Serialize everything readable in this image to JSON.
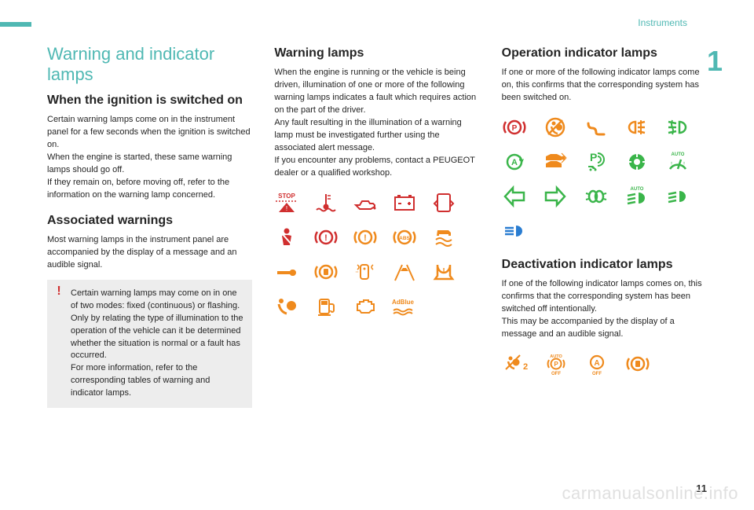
{
  "meta": {
    "section_label": "Instruments",
    "chapter_number": "1",
    "page_number": "11",
    "watermark": "carmanualsonline.info"
  },
  "colors": {
    "accent": "#4fb8b3",
    "red": "#d02f2f",
    "amber": "#ef8a1d",
    "green": "#3ab54a",
    "blue": "#2a7dd1",
    "text": "#252525",
    "callout_bg": "#ededed"
  },
  "col1": {
    "title": "Warning and indicator lamps",
    "h_ignition": "When the ignition is switched on",
    "p_ignition": "Certain warning lamps come on in the instrument panel for a few seconds when the ignition is switched on.\nWhen the engine is started, these same warning lamps should go off.\nIf they remain on, before moving off, refer to the information on the warning lamp concerned.",
    "h_assoc": "Associated warnings",
    "p_assoc": "Most warning lamps in the instrument panel are accompanied by the display of a message and an audible signal.",
    "callout": "Certain warning lamps may come on in one of two modes: fixed (continuous) or flashing.\nOnly by relating the type of illumination to the operation of the vehicle can it be determined whether the situation is normal or a fault has occurred.\nFor more information, refer to the corresponding tables of warning and indicator lamps."
  },
  "col2": {
    "h_warning": "Warning lamps",
    "p_warning": "When the engine is running or the vehicle is being driven, illumination of one or more of the following warning lamps indicates a fault which requires action on the part of the driver.\nAny fault resulting in the illumination of a warning lamp must be investigated further using the associated alert message.\nIf you encounter any problems, contact a PEUGEOT dealer or a qualified workshop.",
    "icons": [
      {
        "name": "stop-icon",
        "c": "red"
      },
      {
        "name": "coolant-temp-icon",
        "c": "red"
      },
      {
        "name": "oil-pressure-icon",
        "c": "red"
      },
      {
        "name": "battery-icon",
        "c": "red"
      },
      {
        "name": "door-open-icon",
        "c": "red"
      },
      {
        "name": "seatbelt-icon",
        "c": "red"
      },
      {
        "name": "brake-icon",
        "c": "red"
      },
      {
        "name": "brake-fault-icon",
        "c": "amber"
      },
      {
        "name": "abs-icon",
        "c": "amber"
      },
      {
        "name": "esp-icon",
        "c": "amber"
      },
      {
        "name": "service-icon",
        "c": "amber"
      },
      {
        "name": "parking-brake-fault-icon",
        "c": "amber"
      },
      {
        "name": "key-diag-icon",
        "c": "amber"
      },
      {
        "name": "lane-departure-icon",
        "c": "amber"
      },
      {
        "name": "tyre-pressure-icon",
        "c": "amber"
      },
      {
        "name": "airbag-icon",
        "c": "amber"
      },
      {
        "name": "fuel-low-icon",
        "c": "amber"
      },
      {
        "name": "engine-diag-icon",
        "c": "amber"
      },
      {
        "name": "adblue-icon",
        "c": "amber",
        "text": "AdBlue"
      }
    ]
  },
  "col3": {
    "h_op": "Operation indicator lamps",
    "p_op": "If one or more of the following indicator lamps come on, this confirms that the corresponding system has been switched on.",
    "op_icons": [
      {
        "name": "handbrake-icon",
        "c": "red"
      },
      {
        "name": "passenger-airbag-off-icon",
        "c": "amber"
      },
      {
        "name": "preheat-icon",
        "c": "amber"
      },
      {
        "name": "rear-fog-icon",
        "c": "amber"
      },
      {
        "name": "front-fog-icon",
        "c": "green"
      },
      {
        "name": "stop-start-icon",
        "c": "green"
      },
      {
        "name": "blind-spot-icon",
        "c": "amber"
      },
      {
        "name": "park-assist-icon",
        "c": "green",
        "label": "P"
      },
      {
        "name": "lane-assist-active-icon",
        "c": "green"
      },
      {
        "name": "auto-wipe-icon",
        "c": "green",
        "label": "AUTO"
      },
      {
        "name": "left-turn-icon",
        "c": "green"
      },
      {
        "name": "right-turn-icon",
        "c": "green"
      },
      {
        "name": "sidelights-icon",
        "c": "green"
      },
      {
        "name": "auto-dip-beam-icon",
        "c": "green",
        "label": "AUTO"
      },
      {
        "name": "dipped-beam-icon",
        "c": "green"
      },
      {
        "name": "main-beam-icon",
        "c": "blue"
      }
    ],
    "h_deact": "Deactivation indicator lamps",
    "p_deact": "If one of the following indicator lamps comes on, this confirms that the corresponding system has been switched off intentionally.\nThis may be accompanied by the display of a message and an audible signal.",
    "deact_icons": [
      {
        "name": "airbag-off-2-icon",
        "c": "amber",
        "label": "2"
      },
      {
        "name": "auto-p-off-icon",
        "c": "amber",
        "top": "AUTO",
        "mid": "P",
        "bot": "OFF"
      },
      {
        "name": "stop-start-off-icon",
        "c": "amber",
        "mid": "A",
        "bot": "OFF"
      },
      {
        "name": "esp-off-icon",
        "c": "amber"
      }
    ]
  }
}
